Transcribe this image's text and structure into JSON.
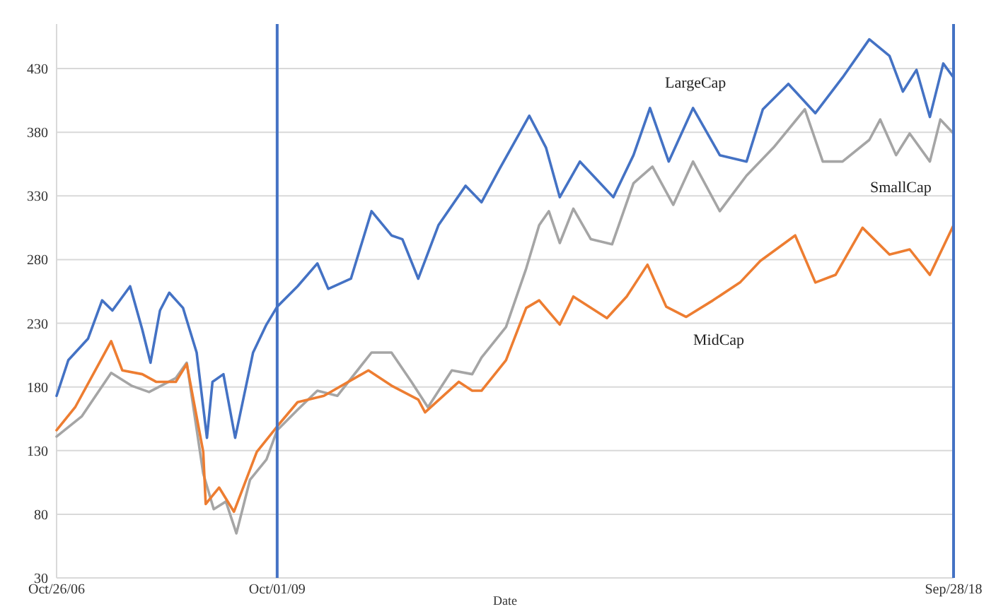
{
  "chart_data": {
    "type": "line",
    "xlabel": "Date",
    "xlim": [
      "2006-10-26",
      "2018-09-28"
    ],
    "xticks": [
      {
        "value": "2006-10-26",
        "label": "Oct/26/06"
      },
      {
        "value": "2009-10-01",
        "label": "Oct/01/09"
      },
      {
        "value": "2018-09-28",
        "label": "Sep/28/18"
      }
    ],
    "ylim": [
      30,
      465
    ],
    "yticks": [
      30,
      80,
      130,
      180,
      230,
      280,
      330,
      380,
      430
    ],
    "grid": "y",
    "marker": "none",
    "line_style": "solid",
    "ref_lines": [
      {
        "axis": "x",
        "value": "2009-10-01",
        "color": "#4472c4"
      },
      {
        "axis": "x",
        "value": "2018-09-28",
        "color": "#4472c4"
      }
    ],
    "series": [
      {
        "name": "LargeCap",
        "color": "#4472c4",
        "x": [
          "2006-10-26",
          "2006-12-22",
          "2007-03-28",
          "2007-06-04",
          "2007-07-24",
          "2007-10-18",
          "2007-12-16",
          "2008-01-25",
          "2008-03-11",
          "2008-04-25",
          "2008-07-01",
          "2008-09-05",
          "2008-10-25",
          "2008-11-21",
          "2009-01-13",
          "2009-03-11",
          "2009-06-06",
          "2009-08-10",
          "2009-10-01",
          "2010-01-08",
          "2010-04-14",
          "2010-06-06",
          "2010-09-24",
          "2011-01-02",
          "2011-04-09",
          "2011-06-01",
          "2011-08-17",
          "2011-11-23",
          "2012-04-03",
          "2012-06-19",
          "2012-09-14",
          "2013-02-06",
          "2013-04-28",
          "2013-07-04",
          "2013-10-10",
          "2014-03-21",
          "2014-06-27",
          "2014-09-15",
          "2014-12-15",
          "2015-04-12",
          "2015-08-20",
          "2015-12-28",
          "2016-03-16",
          "2016-07-18",
          "2016-11-26",
          "2017-04-07",
          "2017-08-15",
          "2017-11-21",
          "2018-01-25",
          "2018-04-01",
          "2018-06-05",
          "2018-08-09",
          "2018-09-28"
        ],
        "values": [
          173,
          201,
          218,
          248,
          240,
          259,
          225,
          199,
          240,
          254,
          242,
          207,
          140,
          184,
          190,
          140,
          207,
          229,
          243,
          259,
          277,
          257,
          265,
          318,
          299,
          296,
          265,
          307,
          338,
          325,
          351,
          393,
          368,
          329,
          357,
          329,
          362,
          399,
          357,
          399,
          362,
          357,
          398,
          418,
          395,
          423,
          453,
          440,
          412,
          429,
          392,
          434,
          423
        ]
      },
      {
        "name": "SmallCap",
        "color": "#a5a5a5",
        "x": [
          "2006-10-26",
          "2007-02-26",
          "2007-07-18",
          "2007-10-24",
          "2008-01-18",
          "2008-05-27",
          "2008-07-19",
          "2008-10-07",
          "2008-11-27",
          "2009-01-25",
          "2009-03-17",
          "2009-05-22",
          "2009-08-10",
          "2009-10-01",
          "2010-01-08",
          "2010-04-14",
          "2010-07-20",
          "2011-01-02",
          "2011-04-09",
          "2011-07-15",
          "2011-10-03",
          "2012-01-27",
          "2012-05-05",
          "2012-06-19",
          "2012-10-16",
          "2013-01-22",
          "2013-03-26",
          "2013-05-12",
          "2013-07-04",
          "2013-09-08",
          "2013-12-02",
          "2014-03-15",
          "2014-06-27",
          "2014-09-27",
          "2015-01-06",
          "2015-04-12",
          "2015-08-20",
          "2015-12-28",
          "2016-05-07",
          "2016-10-06",
          "2017-01-01",
          "2017-04-07",
          "2017-08-15",
          "2017-10-07",
          "2017-12-23",
          "2018-02-27",
          "2018-06-05",
          "2018-07-26",
          "2018-09-28"
        ],
        "values": [
          141,
          157,
          191,
          181,
          176,
          187,
          199,
          112,
          84,
          90,
          65,
          107,
          123,
          146,
          162,
          177,
          173,
          207,
          207,
          184,
          164,
          193,
          190,
          203,
          227,
          273,
          307,
          318,
          293,
          320,
          296,
          292,
          340,
          353,
          323,
          357,
          318,
          346,
          368,
          398,
          357,
          357,
          374,
          390,
          362,
          379,
          357,
          390,
          379
        ]
      },
      {
        "name": "MidCap",
        "color": "#ed7d31",
        "x": [
          "2006-10-26",
          "2007-01-24",
          "2007-05-02",
          "2007-07-18",
          "2007-09-10",
          "2007-12-16",
          "2008-02-21",
          "2008-05-27",
          "2008-07-19",
          "2008-10-07",
          "2008-10-19",
          "2008-12-23",
          "2009-03-05",
          "2009-06-24",
          "2009-10-01",
          "2010-01-08",
          "2010-05-16",
          "2010-12-18",
          "2011-04-09",
          "2011-08-17",
          "2011-09-19",
          "2012-03-01",
          "2012-05-05",
          "2012-06-19",
          "2012-10-16",
          "2013-01-22",
          "2013-03-26",
          "2013-07-04",
          "2013-09-08",
          "2014-02-18",
          "2014-05-25",
          "2014-09-03",
          "2014-12-03",
          "2015-03-10",
          "2015-07-18",
          "2015-11-26",
          "2016-03-04",
          "2016-08-20",
          "2016-11-26",
          "2017-03-04",
          "2017-07-13",
          "2017-11-21",
          "2018-02-27",
          "2018-06-05",
          "2018-09-28"
        ],
        "values": [
          146,
          164,
          193,
          216,
          193,
          190,
          184,
          184,
          198,
          129,
          88,
          101,
          82,
          129,
          149,
          168,
          173,
          193,
          181,
          170,
          160,
          184,
          177,
          177,
          201,
          242,
          248,
          229,
          251,
          234,
          251,
          276,
          243,
          235,
          248,
          262,
          279,
          299,
          262,
          268,
          305,
          284,
          288,
          268,
          307
        ]
      }
    ]
  }
}
